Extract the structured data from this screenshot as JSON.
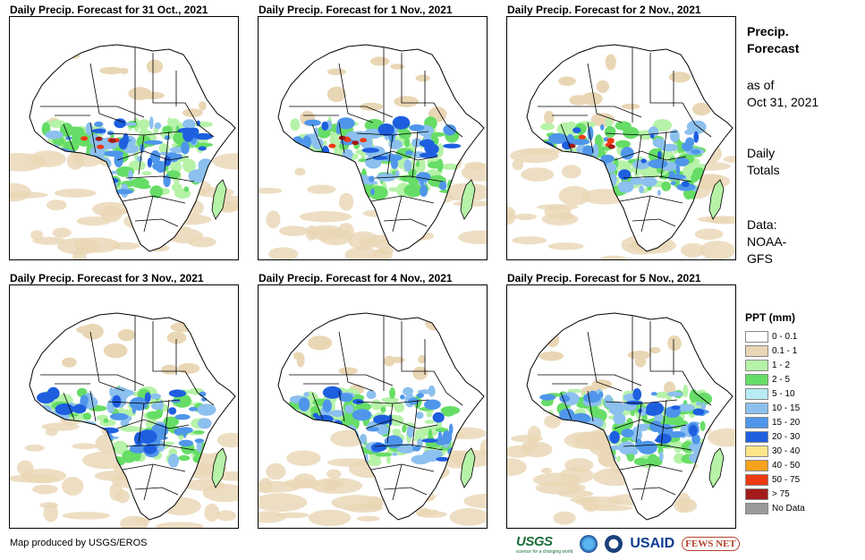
{
  "panels": [
    {
      "title": "Daily Precip. Forecast for 31 Oct., 2021"
    },
    {
      "title": "Daily Precip. Forecast for 1 Nov., 2021"
    },
    {
      "title": "Daily Precip. Forecast for 2 Nov., 2021"
    },
    {
      "title": "Daily Precip. Forecast for 3 Nov., 2021"
    },
    {
      "title": "Daily Precip. Forecast for 4 Nov., 2021"
    },
    {
      "title": "Daily Precip. Forecast for 5 Nov., 2021"
    }
  ],
  "side": {
    "title_line1": "Precip.",
    "title_line2": "Forecast",
    "asof_line1": "as of",
    "asof_line2": "Oct 31, 2021",
    "daily_line1": "Daily",
    "daily_line2": "Totals",
    "data_line1": "Data:",
    "data_line2": "NOAA-",
    "data_line3": "GFS"
  },
  "legend": {
    "title": "PPT (mm)",
    "items": [
      {
        "label": "0 - 0.1",
        "color": "#ffffff"
      },
      {
        "label": "0.1 - 1",
        "color": "#e9d6b4"
      },
      {
        "label": "1 - 2",
        "color": "#b6f2a8"
      },
      {
        "label": "2 - 5",
        "color": "#66dd66"
      },
      {
        "label": "5 - 10",
        "color": "#b8ecf4"
      },
      {
        "label": "10 - 15",
        "color": "#8cc0ee"
      },
      {
        "label": "15 - 20",
        "color": "#4f96ea"
      },
      {
        "label": "20 - 30",
        "color": "#1e5fe0"
      },
      {
        "label": "30 - 40",
        "color": "#fce589"
      },
      {
        "label": "40 - 50",
        "color": "#f6a21c"
      },
      {
        "label": "50 - 75",
        "color": "#ee3a12"
      },
      {
        "label": "> 75",
        "color": "#a31a1a"
      },
      {
        "label": "No Data",
        "color": "#9a9a9a"
      }
    ]
  },
  "credit": "Map produced by USGS/EROS",
  "logos": {
    "usgs": "USGS",
    "usgs_tagline": "science for a changing world",
    "usaid": "USAID",
    "fews": "FEWS NET"
  }
}
